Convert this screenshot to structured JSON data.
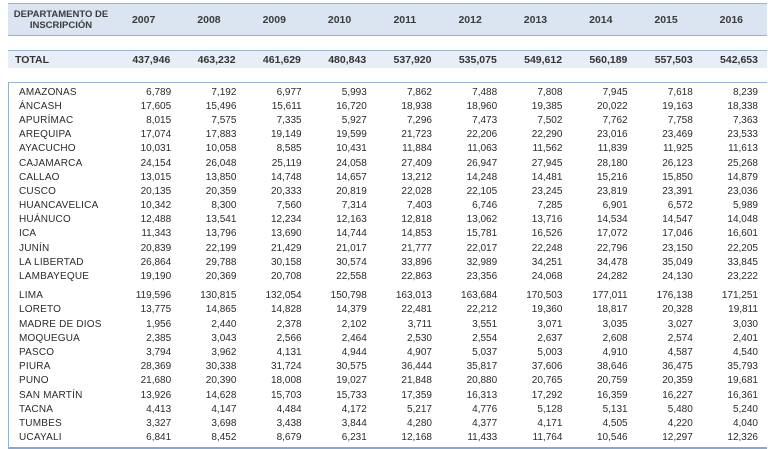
{
  "table": {
    "dept_header": "DEPARTAMENTO DE INSCRIPCIÓN",
    "years": [
      "2007",
      "2008",
      "2009",
      "2010",
      "2011",
      "2012",
      "2013",
      "2014",
      "2015",
      "2016"
    ],
    "total": {
      "label": "TOTAL",
      "values": [
        "437,946",
        "463,232",
        "461,629",
        "480,843",
        "537,920",
        "535,075",
        "549,612",
        "560,189",
        "557,503",
        "542,653"
      ]
    },
    "rows": [
      {
        "name": "AMAZONAS",
        "values": [
          "6,789",
          "7,192",
          "6,977",
          "5,993",
          "7,862",
          "7,488",
          "7,808",
          "7,945",
          "7,618",
          "8,239"
        ]
      },
      {
        "name": "ÁNCASH",
        "values": [
          "17,605",
          "15,496",
          "15,611",
          "16,720",
          "18,938",
          "18,960",
          "19,385",
          "20,022",
          "19,163",
          "18,338"
        ]
      },
      {
        "name": "APURÍMAC",
        "values": [
          "8,015",
          "7,575",
          "7,335",
          "5,927",
          "7,296",
          "7,473",
          "7,502",
          "7,762",
          "7,758",
          "7,363"
        ]
      },
      {
        "name": "AREQUIPA",
        "values": [
          "17,074",
          "17,883",
          "19,149",
          "19,599",
          "21,723",
          "22,206",
          "22,290",
          "23,016",
          "23,469",
          "23,533"
        ]
      },
      {
        "name": "AYACUCHO",
        "values": [
          "10,031",
          "10,058",
          "8,585",
          "10,431",
          "11,884",
          "11,063",
          "11,562",
          "11,839",
          "11,925",
          "11,613"
        ]
      },
      {
        "name": "CAJAMARCA",
        "values": [
          "24,154",
          "26,048",
          "25,119",
          "24,058",
          "27,409",
          "26,947",
          "27,945",
          "28,180",
          "26,123",
          "25,268"
        ]
      },
      {
        "name": "CALLAO",
        "values": [
          "13,015",
          "13,850",
          "14,748",
          "14,657",
          "13,212",
          "14,248",
          "14,481",
          "15,216",
          "15,850",
          "14,879"
        ]
      },
      {
        "name": "CUSCO",
        "values": [
          "20,135",
          "20,359",
          "20,333",
          "20,819",
          "22,028",
          "22,105",
          "23,245",
          "23,819",
          "23,391",
          "23,036"
        ]
      },
      {
        "name": "HUANCAVELICA",
        "values": [
          "10,342",
          "8,300",
          "7,560",
          "7,314",
          "7,403",
          "6,746",
          "7,285",
          "6,901",
          "6,572",
          "5,989"
        ]
      },
      {
        "name": "HUÁNUCO",
        "values": [
          "12,488",
          "13,541",
          "12,234",
          "12,163",
          "12,818",
          "13,062",
          "13,716",
          "14,534",
          "14,547",
          "14,048"
        ]
      },
      {
        "name": "ICA",
        "values": [
          "11,343",
          "13,796",
          "13,690",
          "14,744",
          "14,853",
          "15,781",
          "16,526",
          "17,072",
          "17,046",
          "16,601"
        ]
      },
      {
        "name": "JUNÍN",
        "values": [
          "20,839",
          "22,199",
          "21,429",
          "21,017",
          "21,777",
          "22,017",
          "22,248",
          "22,796",
          "23,150",
          "22,205"
        ]
      },
      {
        "name": "LA LIBERTAD",
        "values": [
          "26,864",
          "29,788",
          "30,158",
          "30,574",
          "33,896",
          "32,989",
          "34,251",
          "34,478",
          "35,049",
          "33,845"
        ]
      },
      {
        "name": "LAMBAYEQUE",
        "values": [
          "19,190",
          "20,369",
          "20,708",
          "22,558",
          "22,863",
          "23,356",
          "24,068",
          "24,282",
          "24,130",
          "23,222"
        ]
      },
      {
        "name": "LIMA",
        "gap_before": true,
        "values": [
          "119,596",
          "130,815",
          "132,054",
          "150,798",
          "163,013",
          "163,684",
          "170,503",
          "177,011",
          "176,138",
          "171,251"
        ]
      },
      {
        "name": "LORETO",
        "values": [
          "13,775",
          "14,865",
          "14,828",
          "14,379",
          "22,481",
          "22,212",
          "19,360",
          "18,817",
          "20,328",
          "19,811"
        ]
      },
      {
        "name": "MADRE DE DIOS",
        "values": [
          "1,956",
          "2,440",
          "2,378",
          "2,102",
          "3,711",
          "3,551",
          "3,071",
          "3,035",
          "3,027",
          "3,030"
        ]
      },
      {
        "name": "MOQUEGUA",
        "values": [
          "2,385",
          "3,043",
          "2,566",
          "2,464",
          "2,530",
          "2,554",
          "2,637",
          "2,608",
          "2,574",
          "2,401"
        ]
      },
      {
        "name": "PASCO",
        "values": [
          "3,794",
          "3,962",
          "4,131",
          "4,944",
          "4,907",
          "5,037",
          "5,003",
          "4,910",
          "4,587",
          "4,540"
        ]
      },
      {
        "name": "PIURA",
        "values": [
          "28,369",
          "30,338",
          "31,724",
          "30,575",
          "36,444",
          "35,817",
          "37,606",
          "38,646",
          "36,475",
          "35,793"
        ]
      },
      {
        "name": "PUNO",
        "values": [
          "21,680",
          "20,390",
          "18,008",
          "19,027",
          "21,848",
          "20,880",
          "20,765",
          "20,759",
          "20,359",
          "19,681"
        ]
      },
      {
        "name": "SAN MARTÍN",
        "values": [
          "13,926",
          "14,628",
          "15,703",
          "15,733",
          "17,359",
          "16,313",
          "17,292",
          "16,359",
          "16,227",
          "16,361"
        ]
      },
      {
        "name": "TACNA",
        "values": [
          "4,413",
          "4,147",
          "4,484",
          "4,172",
          "5,217",
          "4,776",
          "5,128",
          "5,131",
          "5,480",
          "5,240"
        ]
      },
      {
        "name": "TUMBES",
        "values": [
          "3,327",
          "3,698",
          "3,438",
          "3,844",
          "4,280",
          "4,377",
          "4,171",
          "4,505",
          "4,220",
          "4,040"
        ]
      },
      {
        "name": "UCAYALI",
        "values": [
          "6,841",
          "8,452",
          "8,679",
          "6,231",
          "12,168",
          "11,433",
          "11,764",
          "10,546",
          "12,297",
          "12,326"
        ]
      }
    ]
  },
  "colors": {
    "header_band": "#dbe5f1",
    "total_band": "#e8eef7",
    "border": "#95b3d7",
    "bottom_border": "#85a9d4",
    "text": "#2b2b2b"
  }
}
